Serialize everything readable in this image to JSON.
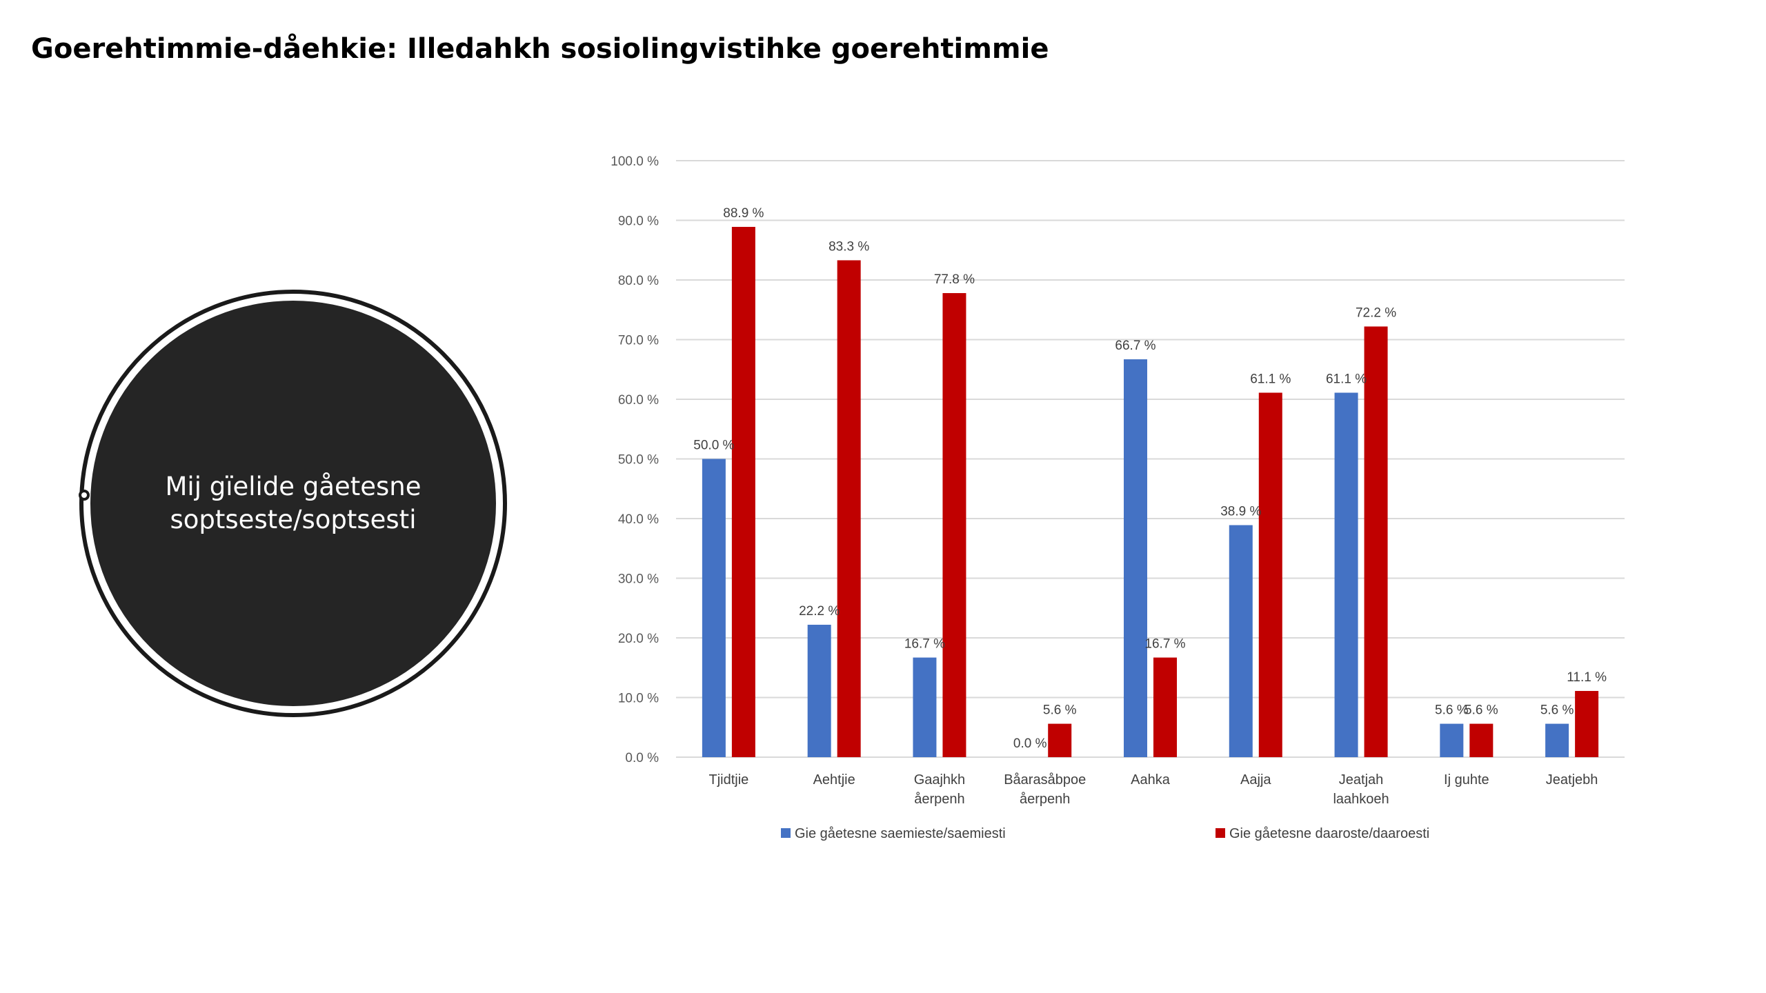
{
  "slide": {
    "title": "Goerehtimmie-dåehkie: Illedahkh sosiolingvistihke goerehtimmie",
    "circle_text": "Mij gïelide gåetesne soptseste/soptsesti"
  },
  "colors": {
    "series_blue": "#4472C4",
    "series_red": "#C00000",
    "gridline": "#D9D9D9",
    "circle_fill": "#252525"
  },
  "chart_data": {
    "type": "bar",
    "title": "",
    "xlabel": "",
    "ylabel": "",
    "ylim": [
      0,
      100
    ],
    "y_ticks": [
      "0.0 %",
      "10.0 %",
      "20.0 %",
      "30.0 %",
      "40.0 %",
      "50.0 %",
      "60.0 %",
      "70.0 %",
      "80.0 %",
      "90.0 %",
      "100.0 %"
    ],
    "grid": true,
    "legend_position": "bottom",
    "categories": [
      [
        "Tjidtjie"
      ],
      [
        "Aehtjie"
      ],
      [
        "Gaajhkh",
        "åerpenh"
      ],
      [
        "Båarasåbpoe",
        "åerpenh"
      ],
      [
        "Aahka"
      ],
      [
        "Aajja"
      ],
      [
        "Jeatjah",
        "laahkoeh"
      ],
      [
        "Ij guhte"
      ],
      [
        "Jeatjebh"
      ]
    ],
    "series": [
      {
        "name": "Gie gåetesne saemieste/saemiesti",
        "color": "#4472C4",
        "values": [
          50.0,
          22.2,
          16.7,
          0.0,
          66.7,
          38.9,
          61.1,
          5.6,
          5.6
        ],
        "labels": [
          "50.0 %",
          "22.2 %",
          "16.7 %",
          "0.0 %",
          "66.7 %",
          "38.9 %",
          "61.1 %",
          "5.6 %",
          "5.6 %"
        ]
      },
      {
        "name": "Gie gåetesne daaroste/daaroesti",
        "color": "#C00000",
        "values": [
          88.9,
          83.3,
          77.8,
          5.6,
          16.7,
          61.1,
          72.2,
          5.6,
          11.1
        ],
        "labels": [
          "88.9 %",
          "83.3 %",
          "77.8 %",
          "5.6 %",
          "16.7 %",
          "61.1 %",
          "72.2 %",
          "5.6 %",
          "11.1 %"
        ]
      }
    ]
  }
}
